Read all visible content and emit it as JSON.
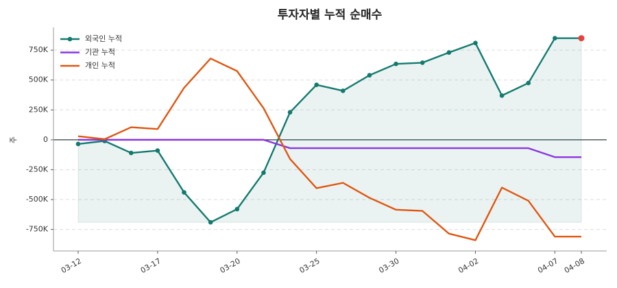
{
  "chart_data": {
    "type": "line",
    "title": "투자자별 누적 순매수",
    "y_label": "주",
    "categories": [
      "03-12",
      null,
      null,
      "03-17",
      null,
      null,
      "03-20",
      null,
      null,
      "03-25",
      null,
      null,
      "03-30",
      null,
      null,
      "04-02",
      null,
      null,
      "04-07",
      "04-08"
    ],
    "series": [
      {
        "name": "외국인 누적",
        "color": "#137a6e",
        "marker": true,
        "fill": true,
        "highlight_last": "#e84040",
        "values": [
          -35000,
          -10000,
          -110000,
          -90000,
          -440000,
          -690000,
          -580000,
          -275000,
          230000,
          460000,
          410000,
          540000,
          635000,
          645000,
          730000,
          810000,
          370000,
          475000,
          850000,
          850000
        ]
      },
      {
        "name": "기관 누적",
        "color": "#8a35e0",
        "values": [
          0,
          0,
          0,
          0,
          0,
          0,
          0,
          0,
          -70000,
          -70000,
          -70000,
          -70000,
          -70000,
          -70000,
          -70000,
          -70000,
          -70000,
          -70000,
          -145000,
          -145000
        ]
      },
      {
        "name": "개인 누적",
        "color": "#e0560f",
        "values": [
          30000,
          5000,
          105000,
          90000,
          435000,
          680000,
          575000,
          265000,
          -160000,
          -405000,
          -360000,
          -485000,
          -585000,
          -595000,
          -785000,
          -840000,
          -400000,
          -510000,
          -810000,
          -810000
        ]
      }
    ],
    "ylim": [
      -930000,
      940000
    ],
    "yticks": [
      {
        "value": -750000,
        "label": "-750K"
      },
      {
        "value": -500000,
        "label": "-500K"
      },
      {
        "value": -250000,
        "label": "-250K"
      },
      0,
      {
        "value": 250000,
        "label": "250K"
      },
      {
        "value": 500000,
        "label": "500K"
      },
      {
        "value": 750000,
        "label": "750K"
      }
    ],
    "grid": true,
    "legend": "upper-left"
  }
}
